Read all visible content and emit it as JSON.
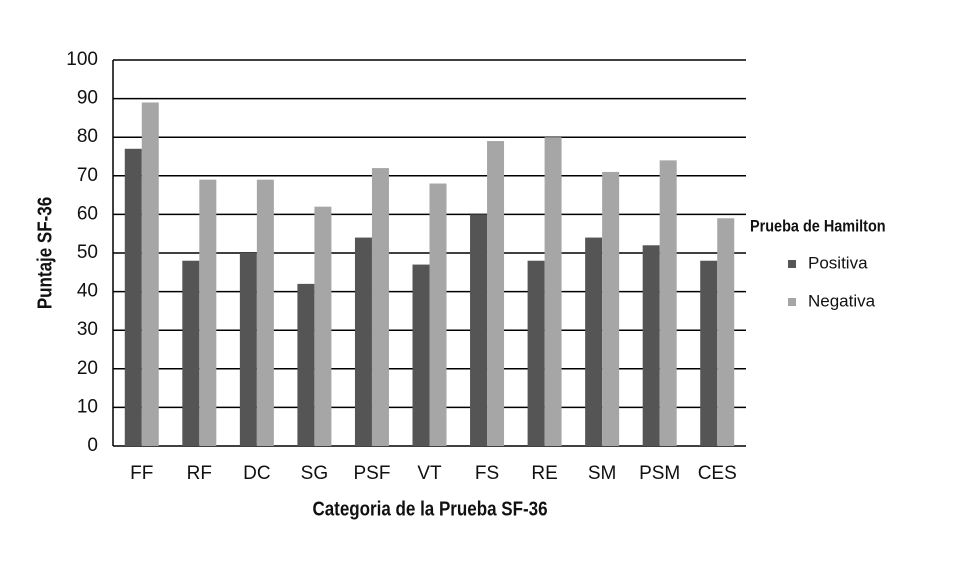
{
  "chart_data": {
    "type": "bar",
    "x_label": "Categoria de la Prueba SF-36",
    "y_label": "Puntaje SF-36",
    "legend_title": "Prueba de Hamilton",
    "legend_position": "right",
    "categories": [
      "FF",
      "RF",
      "DC",
      "SG",
      "PSF",
      "VT",
      "FS",
      "RE",
      "SM",
      "PSM",
      "CES"
    ],
    "series": [
      {
        "name": "Positiva",
        "color": "#555555",
        "values": [
          77,
          48,
          50,
          42,
          54,
          47,
          60,
          48,
          54,
          52,
          48
        ]
      },
      {
        "name": "Negativa",
        "color": "#a6a6a6",
        "values": [
          89,
          69,
          69,
          62,
          72,
          68,
          79,
          80,
          71,
          74,
          59
        ]
      }
    ],
    "ylim": [
      0,
      100
    ],
    "yticks": [
      0,
      10,
      20,
      30,
      40,
      50,
      60,
      70,
      80,
      90,
      100
    ],
    "grid": true
  }
}
